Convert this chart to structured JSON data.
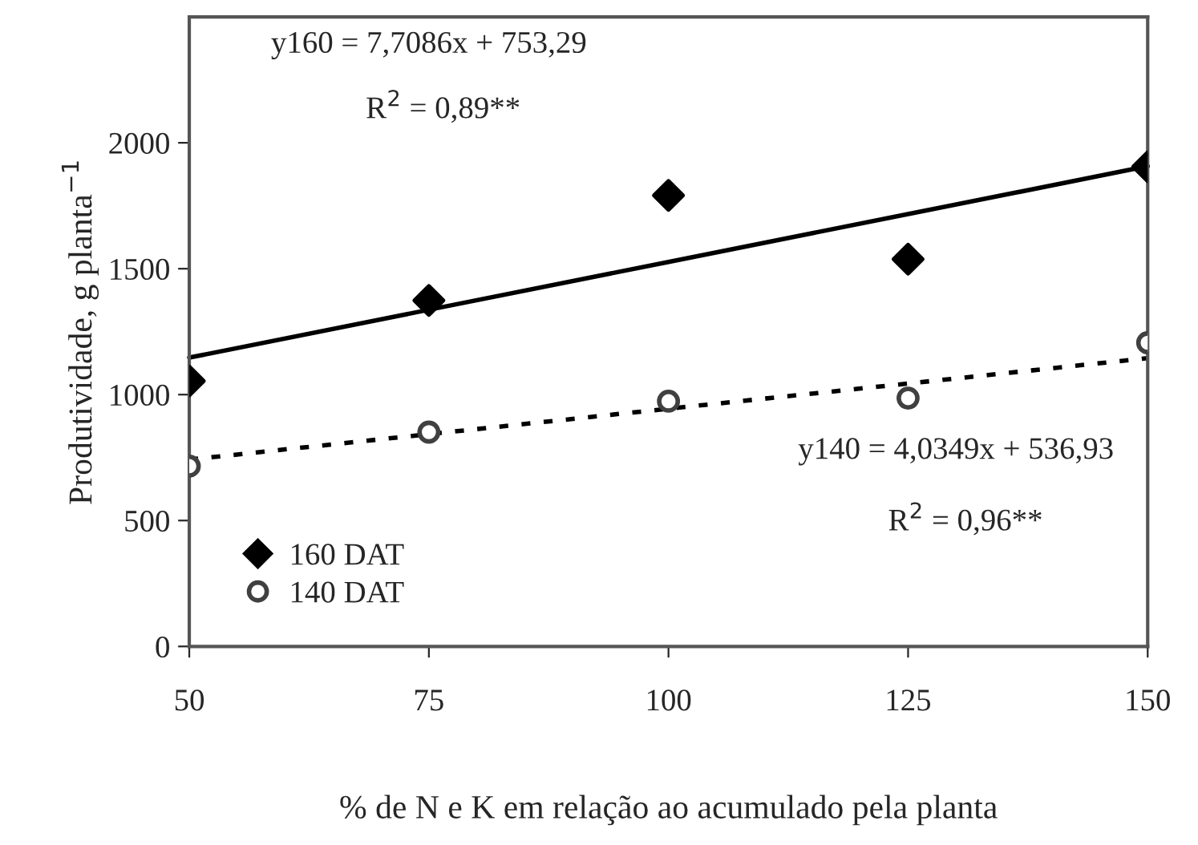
{
  "chart_data": {
    "type": "scatter",
    "xlabel": "% de N e K em relação ao acumulado pela planta",
    "ylabel": "Produtividade, g planta$^{−1}$",
    "x": [
      50,
      75,
      100,
      125,
      150
    ],
    "series": [
      {
        "name": "160 DAT",
        "color": "#000000",
        "marker": "diamond",
        "values": [
          1054,
          1374,
          1791,
          1538,
          1905
        ]
      },
      {
        "name": "140 DAT",
        "color": "#404040",
        "marker": "circle",
        "values": [
          716,
          851,
          974,
          986,
          1206
        ]
      },
      {
        "type": "line",
        "color": "#000000",
        "line_style": "solid",
        "marker": "none",
        "values": [
          1147,
          1337,
          1527,
          1717,
          1907
        ]
      },
      {
        "type": "line",
        "color": "#000000",
        "line_style": "dotted",
        "marker": "none",
        "values": [
          742,
          843,
          944,
          1044,
          1145
        ]
      }
    ],
    "annotations": [
      "y160 = 7,7086x + 753,29",
      "R$^{2}$ = 0,89**",
      "y140 = 4,0349x + 536,93",
      "R$^{2}$ = 0,96**"
    ],
    "xlim": [
      50,
      150
    ],
    "xticks": [
      50,
      75,
      100,
      125,
      150
    ],
    "ylim": [
      0,
      2500
    ],
    "yticks": [
      0,
      500,
      1000,
      1500,
      2000
    ],
    "grid": false,
    "legend": "bottom left"
  }
}
